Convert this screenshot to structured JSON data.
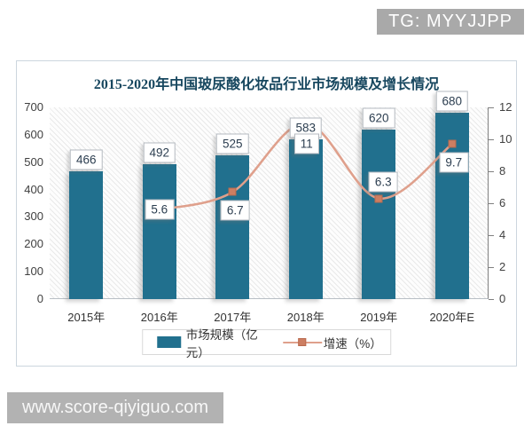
{
  "overlays": {
    "badge": "TG: MYYJJPP",
    "watermark": "www.score-qiyiguo.com"
  },
  "chart_data": {
    "type": "bar",
    "title": "2015-2020年中国玻尿酸化妆品行业市场规模及增长情况",
    "categories": [
      "2015年",
      "2016年",
      "2017年",
      "2018年",
      "2019年",
      "2020年E"
    ],
    "series": [
      {
        "name": "市场规模（亿元）",
        "type": "bar",
        "axis": "left",
        "values": [
          466,
          492,
          525,
          583,
          620,
          680
        ],
        "color": "#21708e"
      },
      {
        "name": "增速（%）",
        "type": "line",
        "axis": "right",
        "values": [
          null,
          5.6,
          6.7,
          11,
          6.3,
          9.7
        ],
        "color": "#dfa08c",
        "marker_color": "#cd7e62"
      }
    ],
    "left_axis": {
      "min": 0,
      "max": 700,
      "step": 100
    },
    "right_axis": {
      "min": 0,
      "max": 12,
      "step": 2
    },
    "legend_position": "bottom",
    "grid": false,
    "plot_background": "diagonal-hatch",
    "data_labels": "boxed"
  }
}
